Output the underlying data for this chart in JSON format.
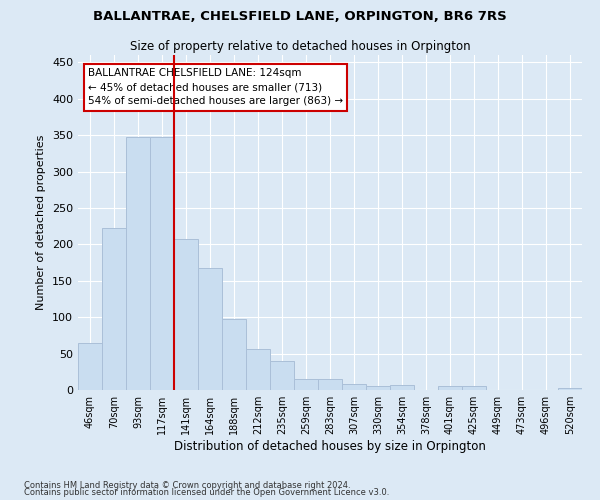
{
  "title1": "BALLANTRAE, CHELSFIELD LANE, ORPINGTON, BR6 7RS",
  "title2": "Size of property relative to detached houses in Orpington",
  "xlabel": "Distribution of detached houses by size in Orpington",
  "ylabel": "Number of detached properties",
  "categories": [
    "46sqm",
    "70sqm",
    "93sqm",
    "117sqm",
    "141sqm",
    "164sqm",
    "188sqm",
    "212sqm",
    "235sqm",
    "259sqm",
    "283sqm",
    "307sqm",
    "330sqm",
    "354sqm",
    "378sqm",
    "401sqm",
    "425sqm",
    "449sqm",
    "473sqm",
    "496sqm",
    "520sqm"
  ],
  "values": [
    65,
    222,
    347,
    347,
    207,
    167,
    97,
    56,
    40,
    15,
    15,
    8,
    6,
    7,
    0,
    5,
    5,
    0,
    0,
    0,
    3
  ],
  "bar_color": "#c9ddf0",
  "bar_edge_color": "#aabfd8",
  "red_line_x": 3.5,
  "annotation_line1": "BALLANTRAE CHELSFIELD LANE: 124sqm",
  "annotation_line2": "← 45% of detached houses are smaller (713)",
  "annotation_line3": "54% of semi-detached houses are larger (863) →",
  "annotation_box_color": "#ffffff",
  "annotation_box_edge_color": "#cc0000",
  "background_color": "#dce9f5",
  "grid_color": "#ffffff",
  "yticks": [
    0,
    50,
    100,
    150,
    200,
    250,
    300,
    350,
    400,
    450
  ],
  "ylim": [
    0,
    460
  ],
  "footer1": "Contains HM Land Registry data © Crown copyright and database right 2024.",
  "footer2": "Contains public sector information licensed under the Open Government Licence v3.0."
}
